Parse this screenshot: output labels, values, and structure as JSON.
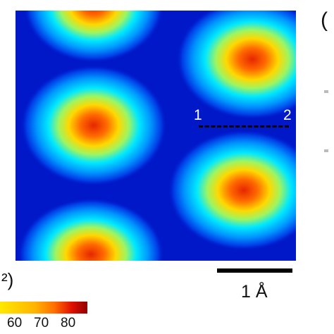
{
  "panels": {
    "left": ")",
    "right": "("
  },
  "stray": "²)",
  "linecut": {
    "start": "1",
    "end": "2"
  },
  "scalebar": {
    "label": "1 Å"
  },
  "colorbar": {
    "ticks": [
      "60",
      "70",
      "80"
    ]
  },
  "colors": {
    "background": "#0018c8",
    "peak": "#e02000",
    "ring": "#00e5ff"
  }
}
